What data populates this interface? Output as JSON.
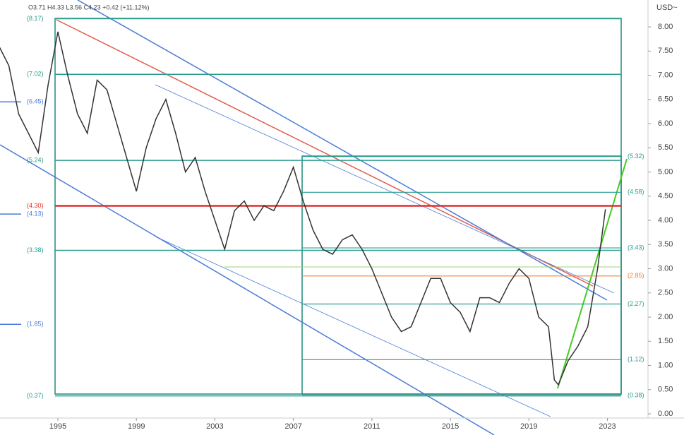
{
  "chart_data": {
    "type": "line",
    "header": "O3.71 H4.33 L3.56 C4.23 +0.42 (+11.12%)",
    "currency": "USD~",
    "x": [
      1992.0,
      1992.5,
      1993.0,
      1993.5,
      1994.0,
      1994.5,
      1995.0,
      1995.5,
      1996.0,
      1996.5,
      1997.0,
      1997.5,
      1998.0,
      1998.5,
      1999.0,
      1999.5,
      2000.0,
      2000.5,
      2001.0,
      2001.5,
      2002.0,
      2002.5,
      2003.0,
      2003.5,
      2004.0,
      2004.5,
      2005.0,
      2005.5,
      2006.0,
      2006.5,
      2007.0,
      2007.5,
      2008.0,
      2008.5,
      2009.0,
      2009.5,
      2010.0,
      2010.5,
      2011.0,
      2011.5,
      2012.0,
      2012.5,
      2013.0,
      2013.5,
      2014.0,
      2014.5,
      2015.0,
      2015.5,
      2016.0,
      2016.5,
      2017.0,
      2017.5,
      2018.0,
      2018.5,
      2019.0,
      2019.5,
      2020.0,
      2020.3,
      2020.5,
      2021.0,
      2021.5,
      2022.0,
      2022.5,
      2022.9
    ],
    "series": [
      {
        "color": "#333333",
        "values": [
          7.6,
          7.2,
          6.2,
          5.8,
          5.4,
          6.8,
          7.9,
          7.0,
          6.2,
          5.8,
          6.9,
          6.7,
          6.0,
          5.3,
          4.6,
          5.5,
          6.1,
          6.5,
          5.8,
          5.0,
          5.3,
          4.6,
          4.0,
          3.4,
          4.2,
          4.4,
          4.0,
          4.3,
          4.2,
          4.6,
          5.1,
          4.4,
          3.8,
          3.4,
          3.3,
          3.6,
          3.7,
          3.4,
          3.0,
          2.5,
          2.0,
          1.7,
          1.8,
          2.3,
          2.8,
          2.8,
          2.3,
          2.1,
          1.7,
          2.4,
          2.4,
          2.3,
          2.7,
          3.0,
          2.8,
          2.0,
          1.8,
          0.7,
          0.6,
          1.1,
          1.4,
          1.8,
          3.0,
          4.23
        ]
      }
    ],
    "xlim": [
      1992.05,
      2025.07
    ],
    "xticks": [
      1995,
      1999,
      2003,
      2007,
      2011,
      2015,
      2019,
      2023
    ],
    "ylim": [
      0,
      8.41
    ],
    "yticks": [
      {
        "value": 0,
        "label": "0.00"
      },
      {
        "value": 0.5,
        "label": "0.50"
      },
      {
        "value": 1,
        "label": "1.00"
      },
      {
        "value": 1.5,
        "label": "1.50"
      },
      {
        "value": 2,
        "label": "2.00"
      },
      {
        "value": 2.5,
        "label": "2.50"
      },
      {
        "value": 3,
        "label": "3.00"
      },
      {
        "value": 3.5,
        "label": "3.50"
      },
      {
        "value": 4,
        "label": "4.00"
      },
      {
        "value": 4.5,
        "label": "4.50"
      },
      {
        "value": 5,
        "label": "5.00"
      },
      {
        "value": 5.5,
        "label": "5.50"
      },
      {
        "value": 6,
        "label": "6.00"
      },
      {
        "value": 6.5,
        "label": "6.50"
      },
      {
        "value": 7,
        "label": "7.00"
      },
      {
        "value": 7.5,
        "label": "7.50"
      },
      {
        "value": 8,
        "label": "8.00"
      }
    ],
    "left_levels": [
      {
        "value": 8.17,
        "label": "(8.17)",
        "color": "#2a9d8f"
      },
      {
        "value": 7.02,
        "label": "(7.02)",
        "color": "#2a9d8f"
      },
      {
        "value": 6.45,
        "label": "(6.45)",
        "color": "#4a7bd8"
      },
      {
        "value": 5.24,
        "label": "(5.24)",
        "color": "#2a9d8f"
      },
      {
        "value": 4.3,
        "label": "(4.30)",
        "color": "#e03030"
      },
      {
        "value": 4.13,
        "label": "(4.13)",
        "color": "#4a7bd8"
      },
      {
        "value": 3.38,
        "label": "(3.38)",
        "color": "#2a9d8f"
      },
      {
        "value": 1.85,
        "label": "(1.85)",
        "color": "#4a7bd8"
      },
      {
        "value": 0.37,
        "label": "(0.37)",
        "color": "#2a9d8f"
      }
    ],
    "right_levels": [
      {
        "value": 5.32,
        "label": "(5.32)",
        "color": "#2a9d8f"
      },
      {
        "value": 4.58,
        "label": "(4.58)",
        "color": "#2a9d8f"
      },
      {
        "value": 3.43,
        "label": "(3.43)",
        "color": "#2a9d8f"
      },
      {
        "value": 2.85,
        "label": "(2.85)",
        "color": "#f08030"
      },
      {
        "value": 2.27,
        "label": "(2.27)",
        "color": "#2a9d8f"
      },
      {
        "value": 1.12,
        "label": "(1.12)",
        "color": "#2a9d8f"
      },
      {
        "value": 0.38,
        "label": "(0.38)",
        "color": "#2a9d8f"
      }
    ]
  }
}
